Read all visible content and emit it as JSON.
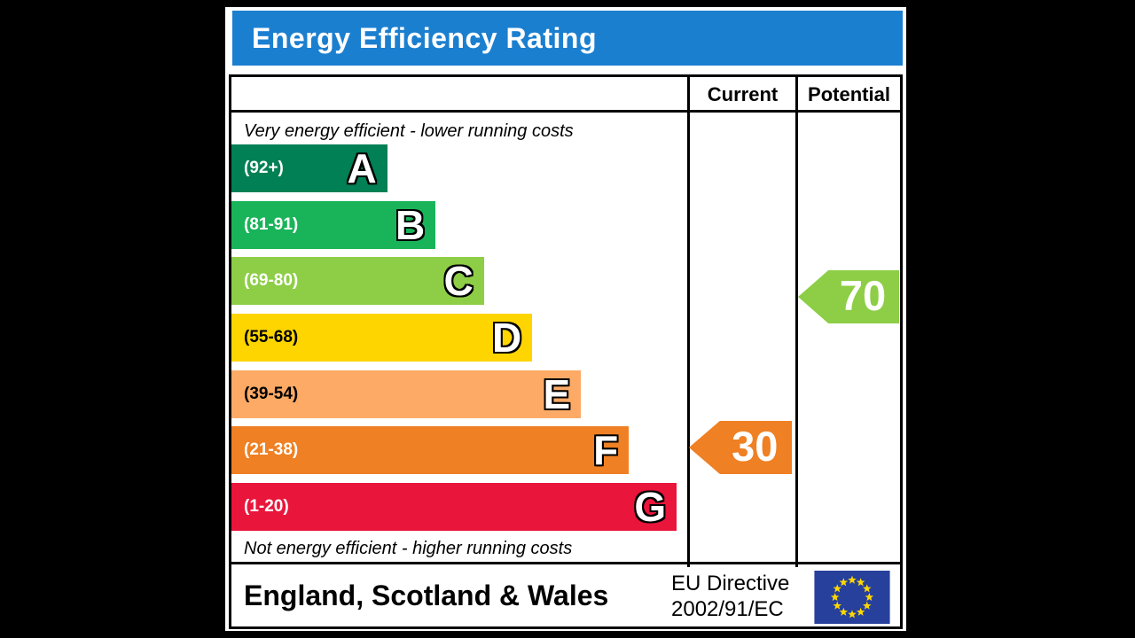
{
  "header": {
    "title": "Energy Efficiency Rating",
    "bar_color": "#1b7fd0",
    "text_color": "#ffffff"
  },
  "columns": {
    "current": "Current",
    "potential": "Potential"
  },
  "scale": {
    "top_note": "Very energy efficient - lower running costs",
    "bottom_note": "Not energy efficient - higher running costs",
    "bands": [
      {
        "letter": "A",
        "range": "(92+)",
        "min": 92,
        "max": 100,
        "color": "#008054",
        "range_text_color": "#ffffff",
        "width_pct": 34.2
      },
      {
        "letter": "B",
        "range": "(81-91)",
        "min": 81,
        "max": 91,
        "color": "#19b459",
        "range_text_color": "#ffffff",
        "width_pct": 44.8
      },
      {
        "letter": "C",
        "range": "(69-80)",
        "min": 69,
        "max": 80,
        "color": "#8dce46",
        "range_text_color": "#ffffff",
        "width_pct": 55.4
      },
      {
        "letter": "D",
        "range": "(55-68)",
        "min": 55,
        "max": 68,
        "color": "#ffd500",
        "range_text_color": "#000000",
        "width_pct": 66.0
      },
      {
        "letter": "E",
        "range": "(39-54)",
        "min": 39,
        "max": 54,
        "color": "#fcaa65",
        "range_text_color": "#000000",
        "width_pct": 76.7
      },
      {
        "letter": "F",
        "range": "(21-38)",
        "min": 21,
        "max": 38,
        "color": "#ef8023",
        "range_text_color": "#ffffff",
        "width_pct": 87.2
      },
      {
        "letter": "G",
        "range": "(1-20)",
        "min": 1,
        "max": 20,
        "color": "#e9153b",
        "range_text_color": "#ffffff",
        "width_pct": 97.7
      }
    ]
  },
  "ratings": {
    "current": {
      "value": "30",
      "band": "F",
      "color": "#ef8023"
    },
    "potential": {
      "value": "70",
      "band": "C",
      "color": "#8dce46"
    }
  },
  "footer": {
    "region": "England, Scotland & Wales",
    "directive_line1": "EU Directive",
    "directive_line2": "2002/91/EC",
    "eu_flag": {
      "background": "#27409b",
      "stars": "#ffd800",
      "star_count": 12
    }
  },
  "chart_data": {
    "type": "bar",
    "title": "Energy Efficiency Rating",
    "categories": [
      "A (92+)",
      "B (81-91)",
      "C (69-80)",
      "D (55-68)",
      "E (39-54)",
      "F (21-38)",
      "G (1-20)"
    ],
    "values": [
      34.2,
      44.8,
      55.4,
      66.0,
      76.7,
      87.2,
      97.7
    ],
    "values_note": "bar lengths as percent of scale column width; EPC band bars have fixed stepped lengths",
    "band_colors": [
      "#008054",
      "#19b459",
      "#8dce46",
      "#ffd500",
      "#fcaa65",
      "#ef8023",
      "#e9153b"
    ],
    "series": [
      {
        "name": "Current",
        "value": 30,
        "band": "F",
        "color": "#ef8023"
      },
      {
        "name": "Potential",
        "value": 70,
        "band": "C",
        "color": "#8dce46"
      }
    ],
    "xlabel": "",
    "ylabel": "",
    "legend_position": "top-right columns",
    "annotations": [
      "Very energy efficient - lower running costs",
      "Not energy efficient - higher running costs",
      "England, Scotland & Wales",
      "EU Directive 2002/91/EC"
    ]
  }
}
